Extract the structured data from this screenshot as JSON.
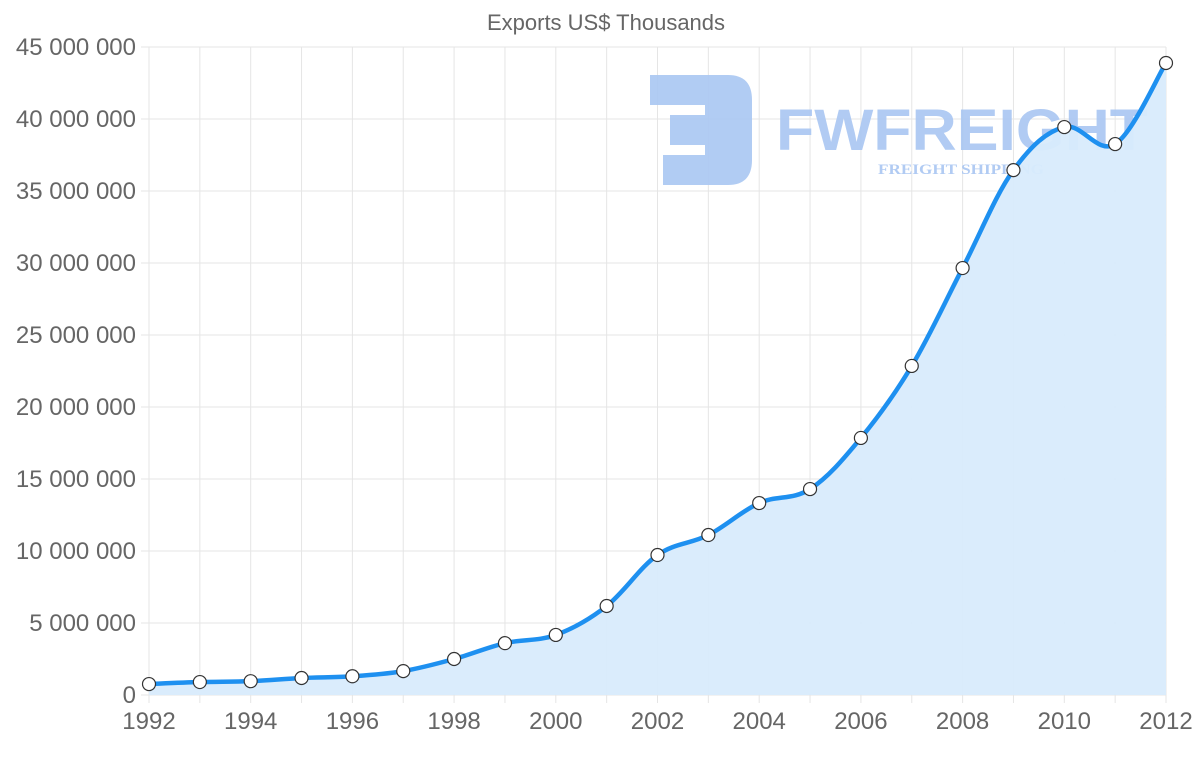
{
  "chart_data": {
    "type": "line",
    "title": "Exports US$ Thousands",
    "xlabel": "",
    "ylabel": "",
    "x": [
      1992,
      1993,
      1994,
      1995,
      1996,
      1997,
      1998,
      1999,
      2000,
      2001,
      2002,
      2003,
      2004,
      2005,
      2006,
      2007,
      2008,
      2009,
      2010,
      2011,
      2012
    ],
    "series": [
      {
        "name": "Exports US$ Thousands",
        "values": [
          760000,
          900000,
          960000,
          1180000,
          1300000,
          1660000,
          2500000,
          3600000,
          4170000,
          6180000,
          9720000,
          11110000,
          13330000,
          14300000,
          17850000,
          22850000,
          29650000,
          36450000,
          39440000,
          38260000,
          43890000
        ]
      }
    ],
    "ylim": [
      0,
      45000000
    ],
    "xlim": [
      1992,
      2012
    ],
    "y_ticks": [
      "0",
      "5 000 000",
      "10 000 000",
      "15 000 000",
      "20 000 000",
      "25 000 000",
      "30 000 000",
      "35 000 000",
      "40 000 000",
      "45 000 000"
    ],
    "x_ticks": [
      "1992",
      "1994",
      "1996",
      "1998",
      "2000",
      "2002",
      "2004",
      "2006",
      "2008",
      "2010",
      "2012"
    ],
    "grid": true,
    "fill": true,
    "legend": "none",
    "colors": {
      "line": "#1e90f0",
      "fill": "#d8ebfc",
      "point_fill": "#ffffff",
      "point_stroke": "#333333",
      "grid": "#e5e5e5",
      "text": "#666666"
    }
  },
  "watermark": {
    "brand": "FWFREIGHT",
    "tagline": "FREIGHT SHIPPING",
    "color": "#a9c6f2"
  }
}
